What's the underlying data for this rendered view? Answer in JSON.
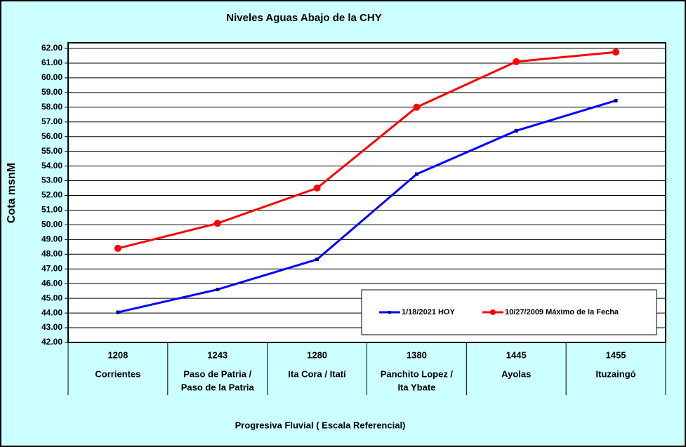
{
  "chart_data": {
    "type": "line",
    "title": "Niveles Aguas Abajo de la CHY",
    "y_label": "Cota msnM",
    "x_label": "Progresiva Fluvial ( Escala Referencial)",
    "categories": [
      "1208",
      "1243",
      "1280",
      "1380",
      "1445",
      "1455"
    ],
    "category_names": [
      [
        "Corrientes"
      ],
      [
        "Paso de Patria /",
        "Paso de la Patria"
      ],
      [
        "Ita Cora / Itatí"
      ],
      [
        "Panchito Lopez /",
        "Ita Ybate"
      ],
      [
        "Ayolas"
      ],
      [
        "Ituzaingó"
      ]
    ],
    "series": [
      {
        "name": "1/18/2021 HOY",
        "color": "#0000ff",
        "marker": "square",
        "values": [
          44.05,
          45.6,
          47.65,
          53.45,
          56.4,
          58.45
        ]
      },
      {
        "name": "10/27/2009 Máximo de la Fecha",
        "color": "#ff0000",
        "marker": "circle",
        "values": [
          48.4,
          50.1,
          52.5,
          58.0,
          61.1,
          61.75
        ]
      }
    ],
    "ylim": [
      42,
      62
    ],
    "yticks": [
      {
        "value": 42,
        "label": "42.00"
      },
      {
        "value": 43,
        "label": "43.00"
      },
      {
        "value": 44,
        "label": "44.00"
      },
      {
        "value": 45,
        "label": "45.00"
      },
      {
        "value": 46,
        "label": "46.00"
      },
      {
        "value": 47,
        "label": "47.00"
      },
      {
        "value": 48,
        "label": "48.00"
      },
      {
        "value": 49,
        "label": "49.00"
      },
      {
        "value": 50,
        "label": "50.00"
      },
      {
        "value": 51,
        "label": "51.00"
      },
      {
        "value": 52,
        "label": "52.00"
      },
      {
        "value": 53,
        "label": "53.00"
      },
      {
        "value": 54,
        "label": "54.00"
      },
      {
        "value": 55,
        "label": "55.00"
      },
      {
        "value": 56,
        "label": "56.00"
      },
      {
        "value": 57,
        "label": "57.00"
      },
      {
        "value": 58,
        "label": "58.00"
      },
      {
        "value": 59,
        "label": "59.00"
      },
      {
        "value": 60,
        "label": "60.00"
      },
      {
        "value": 61,
        "label": "61.00"
      },
      {
        "value": 62,
        "label": "62.00"
      }
    ],
    "grid": true,
    "legend": "lower-right"
  }
}
